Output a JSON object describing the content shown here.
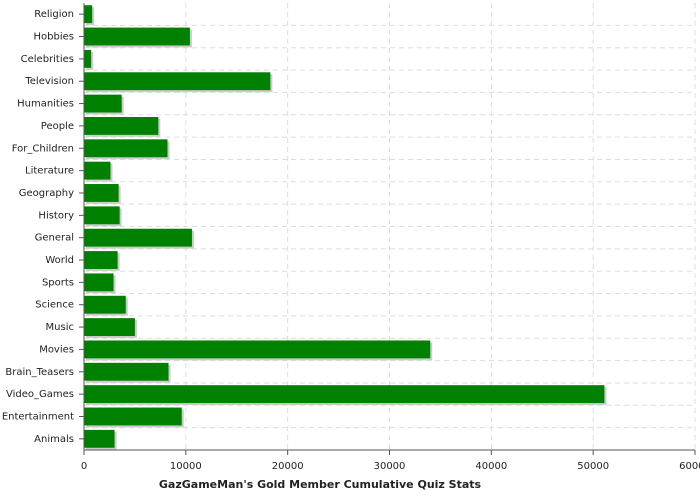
{
  "chart_data": {
    "type": "bar",
    "orientation": "horizontal",
    "x_label": "GazGameMan's Gold Member Cumulative Quiz Stats",
    "categories": [
      "Religion",
      "Hobbies",
      "Celebrities",
      "Television",
      "Humanities",
      "People",
      "For_Children",
      "Literature",
      "Geography",
      "History",
      "General",
      "World",
      "Sports",
      "Science",
      "Music",
      "Movies",
      "Brain_Teasers",
      "Video_Games",
      "Entertainment",
      "Animals"
    ],
    "values": [
      800,
      10400,
      700,
      18300,
      3700,
      7300,
      8200,
      2600,
      3400,
      3500,
      10600,
      3300,
      2900,
      4100,
      5000,
      34000,
      8300,
      51100,
      9600,
      3000
    ],
    "color": "#008000",
    "xlim": [
      0,
      60000
    ],
    "xticks": [
      0,
      10000,
      20000,
      30000,
      40000,
      50000,
      60000
    ],
    "grid": true
  }
}
